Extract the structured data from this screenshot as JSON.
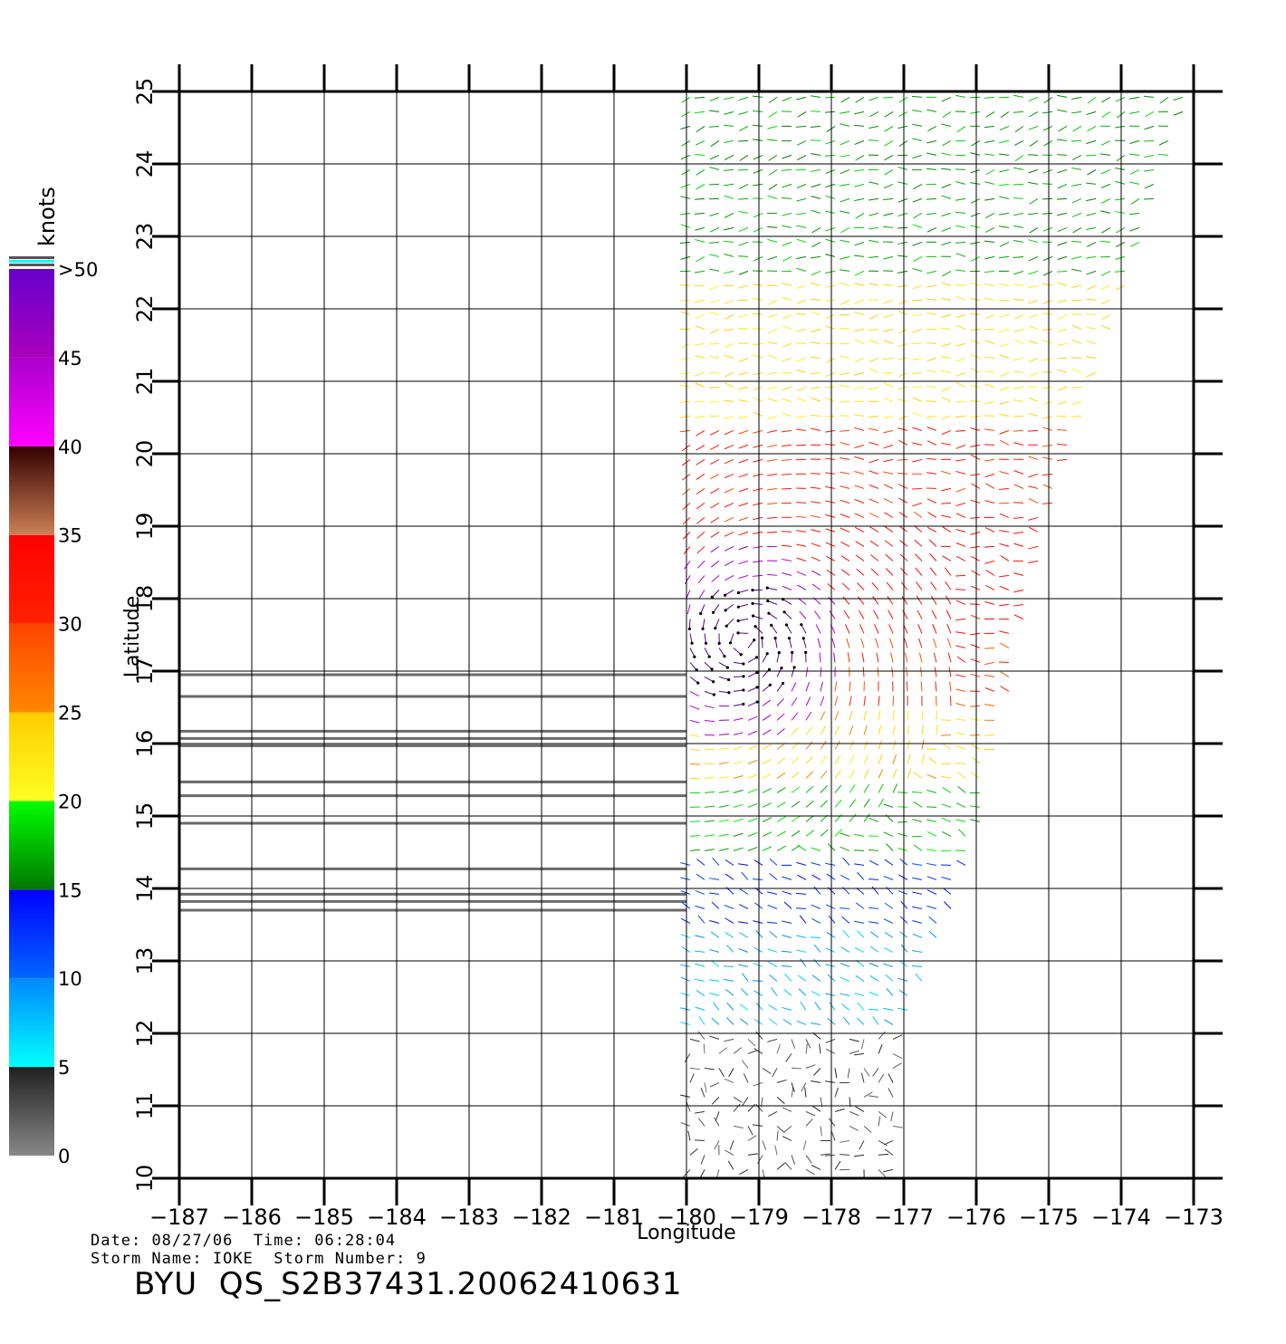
{
  "chart_data": {
    "type": "scatter",
    "plot_kind": "wind vector map",
    "xlabel": "Longitude",
    "ylabel": "Latitude",
    "xlim": [
      -187,
      -173
    ],
    "ylim": [
      10,
      25
    ],
    "x_ticks": [
      "−187",
      "−186",
      "−185",
      "−184",
      "−183",
      "−182",
      "−181",
      "−180",
      "−179",
      "−178",
      "−177",
      "−176",
      "−175",
      "−174",
      "−173"
    ],
    "y_ticks": [
      "10",
      "11",
      "12",
      "13",
      "14",
      "15",
      "16",
      "17",
      "18",
      "19",
      "20",
      "21",
      "22",
      "23",
      "24",
      "25"
    ],
    "grid": true,
    "swath": {
      "left_lon": -180,
      "right_edge": [
        [
          -173,
          25
        ],
        [
          -175,
          19
        ],
        [
          -176,
          14.5
        ],
        [
          -177,
          12
        ],
        [
          -177,
          10
        ]
      ],
      "band_speeds_knots": [
        {
          "lat_from": 10,
          "lat_to": 12,
          "speed": 3
        },
        {
          "lat_from": 12,
          "lat_to": 13.5,
          "speed": 8
        },
        {
          "lat_from": 13.5,
          "lat_to": 14.5,
          "speed": 13
        },
        {
          "lat_from": 14.5,
          "lat_to": 15.5,
          "speed": 18
        },
        {
          "lat_from": 15.5,
          "lat_to": 16.5,
          "speed": 24
        },
        {
          "lat_from": 16.5,
          "lat_to": 17.5,
          "speed": 30
        },
        {
          "lat_from": 17.5,
          "lat_to": 19,
          "speed": 33
        },
        {
          "lat_from": 19,
          "lat_to": 20.5,
          "speed": 31
        },
        {
          "lat_from": 20.5,
          "lat_to": 22.5,
          "speed": 23
        },
        {
          "lat_from": 22.5,
          "lat_to": 25,
          "speed": 17
        }
      ],
      "storm_center": [
        -179.2,
        17.4
      ]
    },
    "rain_flag_lines_lat": [
      16.95,
      16.65,
      16.17,
      16.07,
      15.97,
      15.47,
      15.28,
      14.9,
      14.27,
      13.92,
      13.82,
      13.7
    ],
    "colorbar": {
      "unit": "knots",
      "tick_labels": [
        "0",
        "5",
        "10",
        "15",
        "20",
        "25",
        "30",
        "35",
        "40",
        "45",
        ">50"
      ],
      "segments": [
        {
          "from": 0,
          "to": 5,
          "colors": [
            "#888888",
            "#202020"
          ]
        },
        {
          "from": 5,
          "to": 10,
          "colors": [
            "#00ffff",
            "#0088ff"
          ]
        },
        {
          "from": 10,
          "to": 15,
          "colors": [
            "#0066ff",
            "#0000ff"
          ]
        },
        {
          "from": 15,
          "to": 20,
          "colors": [
            "#007700",
            "#00ff00"
          ]
        },
        {
          "from": 20,
          "to": 25,
          "colors": [
            "#ffff22",
            "#ffcc00"
          ]
        },
        {
          "from": 25,
          "to": 30,
          "colors": [
            "#ff8800",
            "#ff4400"
          ]
        },
        {
          "from": 30,
          "to": 35,
          "colors": [
            "#ff2200",
            "#ff0000"
          ]
        },
        {
          "from": 35,
          "to": 40,
          "colors": [
            "#cc8055",
            "#330000"
          ]
        },
        {
          "from": 40,
          "to": 45,
          "colors": [
            "#ff00ff",
            "#aa00cc"
          ]
        },
        {
          "from": 45,
          "to": 50,
          "colors": [
            "#aa00bb",
            "#6600cc"
          ]
        }
      ]
    }
  },
  "info": {
    "date_label": "Date:",
    "date": "08/27/06",
    "time_label": "Time:",
    "time": "06:28:04",
    "storm_name_label": "Storm Name:",
    "storm_name": "IOKE",
    "storm_number_label": "Storm Number:",
    "storm_number": "9"
  },
  "product_title": "BYU  QS_S2B37431.20062410631"
}
